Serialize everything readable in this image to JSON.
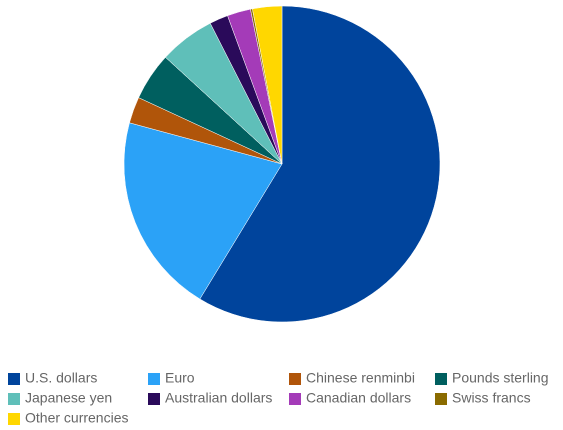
{
  "chart_data": {
    "type": "pie",
    "categories": [
      "U.S. dollars",
      "Euro",
      "Chinese renminbi",
      "Pounds sterling",
      "Japanese yen",
      "Australian dollars",
      "Canadian dollars",
      "Swiss francs",
      "Other currencies"
    ],
    "values": [
      58.7,
      20.5,
      2.7,
      4.9,
      5.7,
      1.9,
      2.4,
      0.2,
      3.0
    ],
    "colors": [
      "#00449c",
      "#2ba2f7",
      "#b0550a",
      "#005f5f",
      "#5fbfb9",
      "#2a0a5a",
      "#a43bb8",
      "#8a6b00",
      "#ffd700"
    ],
    "legend": "bottom"
  }
}
